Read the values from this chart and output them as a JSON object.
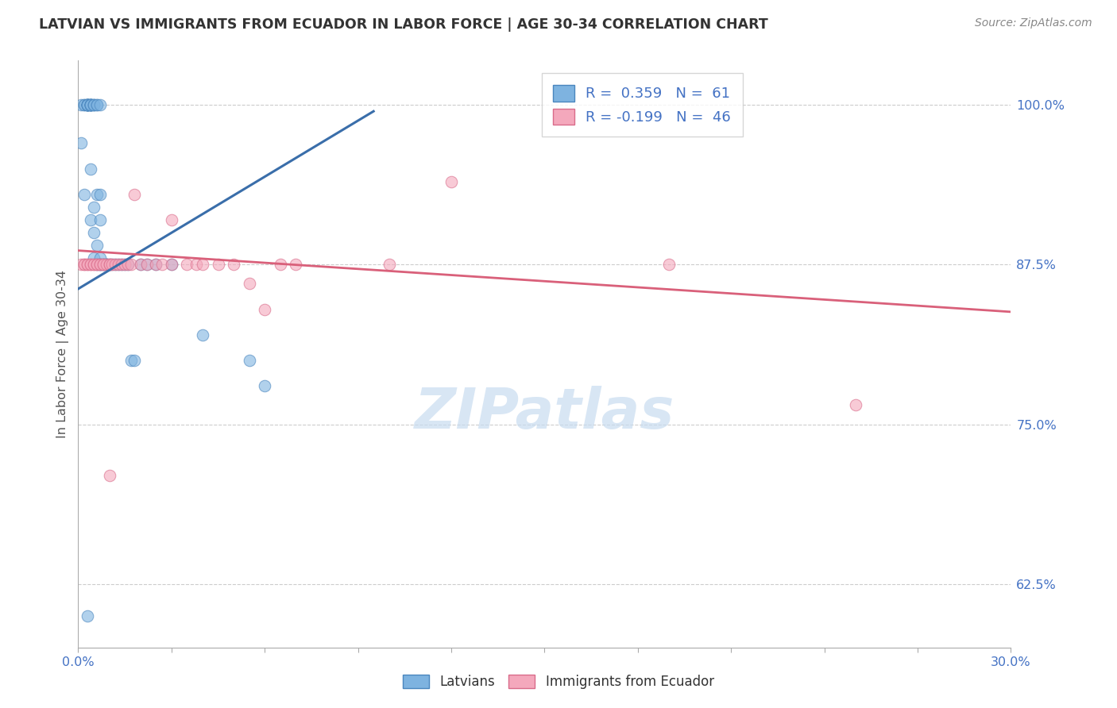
{
  "title": "LATVIAN VS IMMIGRANTS FROM ECUADOR IN LABOR FORCE | AGE 30-34 CORRELATION CHART",
  "source": "Source: ZipAtlas.com",
  "ylabel": "In Labor Force | Age 30-34",
  "xlim": [
    0.0,
    0.3
  ],
  "ylim": [
    0.575,
    1.035
  ],
  "yticks": [
    0.625,
    0.75,
    0.875,
    1.0
  ],
  "ytick_labels": [
    "62.5%",
    "75.0%",
    "87.5%",
    "100.0%"
  ],
  "xticks": [
    0.0,
    0.03,
    0.06,
    0.09,
    0.12,
    0.15,
    0.18,
    0.21,
    0.24,
    0.27,
    0.3
  ],
  "xtick_labels": [
    "0.0%",
    "",
    "",
    "",
    "",
    "",
    "",
    "",
    "",
    "",
    "30.0%"
  ],
  "latvian_R": 0.359,
  "latvian_N": 61,
  "ecuador_R": -0.199,
  "ecuador_N": 46,
  "blue_scatter": "#7EB3E0",
  "blue_edge": "#4A86BE",
  "pink_scatter": "#F4A8BC",
  "pink_edge": "#D96B8A",
  "line_blue": "#3A6EAA",
  "line_pink": "#D9607A",
  "watermark_color": "#C8DCF0",
  "latvian_x": [
    0.001,
    0.001,
    0.002,
    0.002,
    0.002,
    0.003,
    0.003,
    0.003,
    0.003,
    0.003,
    0.003,
    0.003,
    0.003,
    0.004,
    0.004,
    0.004,
    0.004,
    0.004,
    0.004,
    0.004,
    0.004,
    0.004,
    0.005,
    0.005,
    0.005,
    0.005,
    0.005,
    0.005,
    0.006,
    0.006,
    0.006,
    0.006,
    0.006,
    0.007,
    0.007,
    0.007,
    0.007,
    0.007,
    0.007,
    0.008,
    0.008,
    0.009,
    0.009,
    0.009,
    0.01,
    0.011,
    0.012,
    0.013,
    0.014,
    0.015,
    0.016,
    0.017,
    0.018,
    0.02,
    0.022,
    0.025,
    0.03,
    0.04,
    0.055,
    0.06,
    0.003
  ],
  "latvian_y": [
    1.0,
    0.97,
    1.0,
    1.0,
    0.93,
    1.0,
    1.0,
    1.0,
    1.0,
    1.0,
    1.0,
    1.0,
    1.0,
    1.0,
    1.0,
    1.0,
    1.0,
    1.0,
    1.0,
    1.0,
    0.95,
    0.91,
    1.0,
    1.0,
    1.0,
    0.92,
    0.9,
    0.88,
    1.0,
    1.0,
    0.93,
    0.89,
    0.875,
    1.0,
    0.93,
    0.91,
    0.88,
    0.875,
    0.875,
    0.875,
    0.875,
    0.875,
    0.875,
    0.875,
    0.875,
    0.875,
    0.875,
    0.875,
    0.875,
    0.875,
    0.875,
    0.8,
    0.8,
    0.875,
    0.875,
    0.875,
    0.875,
    0.82,
    0.8,
    0.78,
    0.6
  ],
  "ecuador_x": [
    0.001,
    0.002,
    0.002,
    0.003,
    0.003,
    0.004,
    0.004,
    0.005,
    0.005,
    0.006,
    0.006,
    0.007,
    0.007,
    0.008,
    0.008,
    0.009,
    0.01,
    0.01,
    0.011,
    0.012,
    0.013,
    0.014,
    0.015,
    0.016,
    0.017,
    0.018,
    0.02,
    0.022,
    0.025,
    0.027,
    0.03,
    0.03,
    0.035,
    0.038,
    0.04,
    0.045,
    0.05,
    0.055,
    0.06,
    0.065,
    0.07,
    0.1,
    0.12,
    0.19,
    0.25,
    0.01
  ],
  "ecuador_y": [
    0.875,
    0.875,
    0.875,
    0.875,
    0.875,
    0.875,
    0.875,
    0.875,
    0.875,
    0.875,
    0.875,
    0.875,
    0.875,
    0.875,
    0.875,
    0.875,
    0.875,
    0.875,
    0.875,
    0.875,
    0.875,
    0.875,
    0.875,
    0.875,
    0.875,
    0.93,
    0.875,
    0.875,
    0.875,
    0.875,
    0.91,
    0.875,
    0.875,
    0.875,
    0.875,
    0.875,
    0.875,
    0.86,
    0.84,
    0.875,
    0.875,
    0.875,
    0.94,
    0.875,
    0.765,
    0.71
  ],
  "blue_line_x0": 0.0,
  "blue_line_y0": 0.856,
  "blue_line_x1": 0.095,
  "blue_line_y1": 0.995,
  "pink_line_x0": 0.0,
  "pink_line_y0": 0.886,
  "pink_line_x1": 0.3,
  "pink_line_y1": 0.838
}
